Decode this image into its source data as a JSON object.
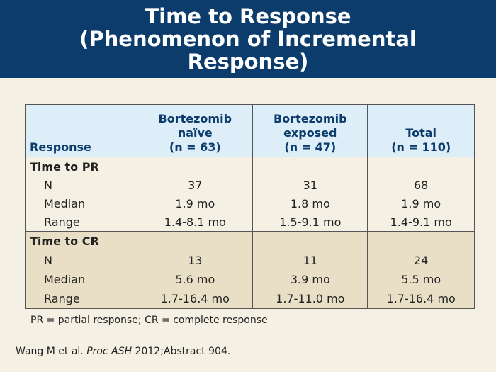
{
  "header": {
    "title": [
      "Time to Response",
      "(Phenomenon of Incremental",
      "Response)"
    ]
  },
  "table": {
    "columns": [
      {
        "lines": [
          "Response"
        ]
      },
      {
        "lines": [
          "Bortezomib",
          "naïve",
          "(n = 63)"
        ]
      },
      {
        "lines": [
          "Bortezomib",
          "exposed",
          "(n = 47)"
        ]
      },
      {
        "lines": [
          "Total",
          "(n = 110)"
        ]
      }
    ],
    "sections": [
      {
        "title": "Time to PR",
        "rows": [
          [
            "N",
            "37",
            "31",
            "68"
          ],
          [
            "Median",
            "1.9 mo",
            "1.8 mo",
            "1.9 mo"
          ],
          [
            "Range",
            "1.4-8.1 mo",
            "1.5-9.1 mo",
            "1.4-9.1 mo"
          ]
        ]
      },
      {
        "title": "Time to CR",
        "rows": [
          [
            "N",
            "13",
            "11",
            "24"
          ],
          [
            "Median",
            "5.6 mo",
            "3.9 mo",
            "5.5 mo"
          ],
          [
            "Range",
            "1.7-16.4 mo",
            "1.7-11.0 mo",
            "1.7-16.4 mo"
          ]
        ]
      }
    ]
  },
  "footnote": "PR = partial response; CR = complete response",
  "citation": {
    "authors": "Wang M et al.",
    "journal": "Proc ASH",
    "rest": "2012;Abstract 904."
  }
}
